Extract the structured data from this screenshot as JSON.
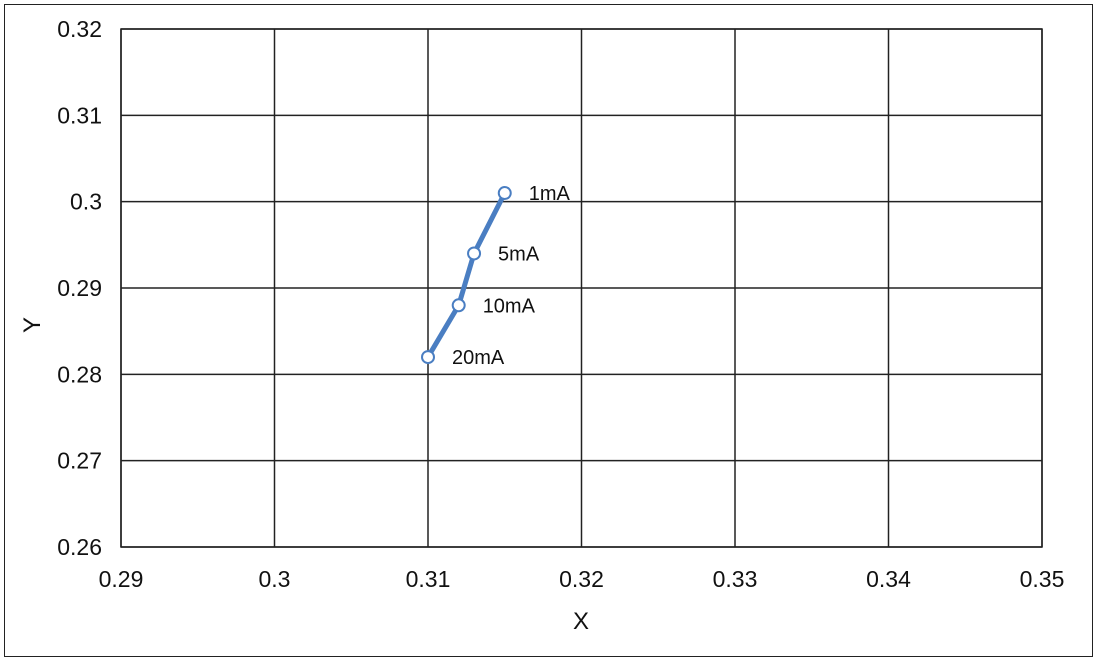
{
  "chart_data": {
    "type": "scatter",
    "title": "",
    "xlabel": "X",
    "ylabel": "Y",
    "xlim": [
      0.29,
      0.35
    ],
    "ylim": [
      0.26,
      0.32
    ],
    "x_ticks": [
      "0.29",
      "0.3",
      "0.31",
      "0.32",
      "0.33",
      "0.34",
      "0.35"
    ],
    "y_ticks": [
      "0.32",
      "0.31",
      "0.3",
      "0.29",
      "0.28",
      "0.27",
      "0.26"
    ],
    "grid": true,
    "legend": "none",
    "line_color": "#4a7ec2",
    "series": [
      {
        "points": [
          {
            "x": 0.315,
            "y": 0.301,
            "label": "1mA"
          },
          {
            "x": 0.313,
            "y": 0.294,
            "label": "5mA"
          },
          {
            "x": 0.312,
            "y": 0.288,
            "label": "10mA"
          },
          {
            "x": 0.31,
            "y": 0.282,
            "label": "20mA"
          }
        ]
      }
    ]
  }
}
